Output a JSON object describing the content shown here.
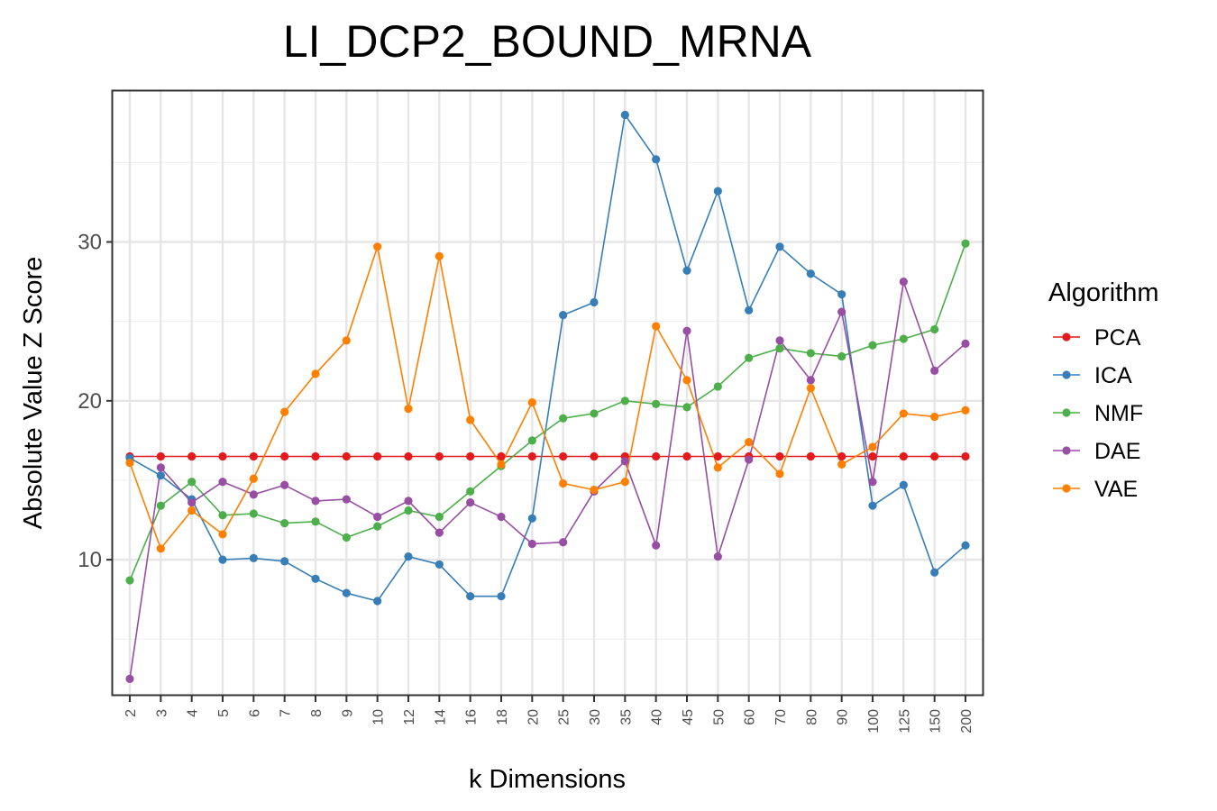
{
  "chart_data": {
    "type": "line",
    "title": "LI_DCP2_BOUND_MRNA",
    "xlabel": "k Dimensions",
    "ylabel": "Absolute Value Z Score",
    "categories": [
      "2",
      "3",
      "4",
      "5",
      "6",
      "7",
      "8",
      "9",
      "10",
      "12",
      "14",
      "16",
      "18",
      "20",
      "25",
      "30",
      "35",
      "40",
      "45",
      "50",
      "60",
      "70",
      "80",
      "90",
      "100",
      "125",
      "150",
      "200"
    ],
    "yticks": [
      10,
      20,
      30
    ],
    "ylim": [
      1.5,
      39.5
    ],
    "grid": true,
    "legend": {
      "title": "Algorithm",
      "position": "right"
    },
    "series": [
      {
        "name": "PCA",
        "color": "#e41a1c",
        "values": [
          16.5,
          16.5,
          16.5,
          16.5,
          16.5,
          16.5,
          16.5,
          16.5,
          16.5,
          16.5,
          16.5,
          16.5,
          16.5,
          16.5,
          16.5,
          16.5,
          16.5,
          16.5,
          16.5,
          16.5,
          16.5,
          16.5,
          16.5,
          16.5,
          16.5,
          16.5,
          16.5,
          16.5
        ]
      },
      {
        "name": "ICA",
        "color": "#377eb8",
        "values": [
          16.4,
          15.3,
          13.8,
          10.0,
          10.1,
          9.9,
          8.8,
          7.9,
          7.4,
          10.2,
          9.7,
          7.7,
          7.7,
          12.6,
          25.4,
          26.2,
          38.0,
          35.2,
          28.2,
          33.2,
          25.7,
          29.7,
          28.0,
          26.7,
          13.4,
          14.7,
          9.2,
          10.9
        ]
      },
      {
        "name": "NMF",
        "color": "#4daf4a",
        "values": [
          8.7,
          13.4,
          14.9,
          12.8,
          12.9,
          12.3,
          12.4,
          11.4,
          12.1,
          13.1,
          12.7,
          14.3,
          15.9,
          17.5,
          18.9,
          19.2,
          20.0,
          19.8,
          19.6,
          20.9,
          22.7,
          23.3,
          23.0,
          22.8,
          23.5,
          23.9,
          24.5,
          29.9
        ]
      },
      {
        "name": "DAE",
        "color": "#984ea3",
        "values": [
          2.5,
          15.8,
          13.6,
          14.9,
          14.1,
          14.7,
          13.7,
          13.8,
          12.7,
          13.7,
          11.7,
          13.6,
          12.7,
          11.0,
          11.1,
          14.3,
          16.2,
          10.9,
          24.4,
          10.2,
          16.3,
          23.8,
          21.3,
          25.6,
          14.9,
          27.5,
          21.9,
          23.6
        ]
      },
      {
        "name": "VAE",
        "color": "#ff7f00",
        "values": [
          16.1,
          10.7,
          13.1,
          11.6,
          15.1,
          19.3,
          21.7,
          23.8,
          29.7,
          19.5,
          29.1,
          18.8,
          16.0,
          19.9,
          14.8,
          14.4,
          14.9,
          24.7,
          21.3,
          15.8,
          17.4,
          15.4,
          20.8,
          16.0,
          17.1,
          19.2,
          19.0,
          19.4
        ]
      }
    ]
  }
}
